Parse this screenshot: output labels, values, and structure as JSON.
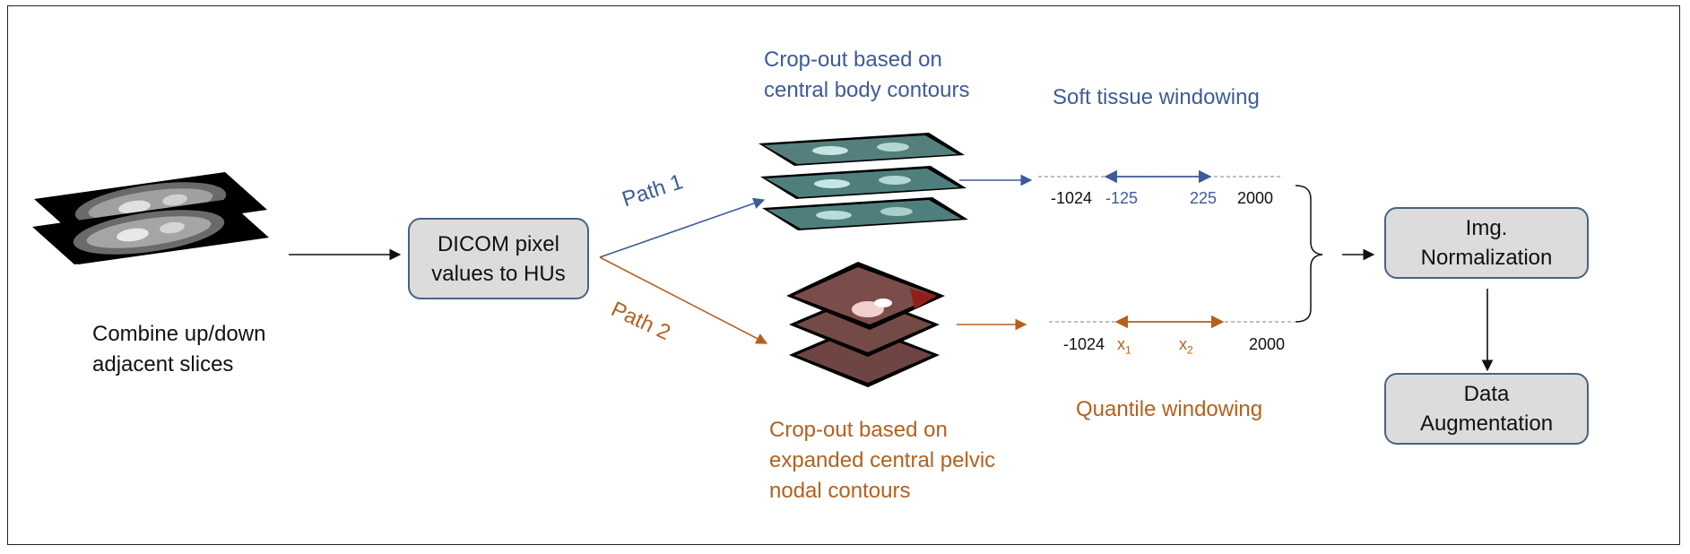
{
  "colors": {
    "path1": "#3d5b99",
    "path2": "#b5601e",
    "box_border": "#4a6282",
    "box_fill": "#dcdcdc"
  },
  "combine": {
    "label": "Combine up/down\nadjacent slices"
  },
  "dicom": {
    "label": "DICOM pixel\nvalues to HUs"
  },
  "path1": {
    "label": "Path 1",
    "crop_label": "Crop-out based on\ncentral body contours"
  },
  "path2": {
    "label": "Path 2",
    "crop_label": "Crop-out based on\nexpanded central pelvic\nnodal contours"
  },
  "soft_tissue": {
    "title": "Soft tissue windowing",
    "ticks": {
      "min": "-1024",
      "low": "-125",
      "high": "225",
      "max": "2000"
    }
  },
  "quantile": {
    "title": "Quantile windowing",
    "ticks": {
      "min": "-1024",
      "low": "x",
      "low_sub": "1",
      "high": "x",
      "high_sub": "2",
      "max": "2000"
    }
  },
  "normalization": {
    "label": "Img.\nNormalization"
  },
  "augmentation": {
    "label": "Data\nAugmentation"
  },
  "icons": [
    "ct-slice-stack-icon",
    "ct-crop-stack-icon",
    "pelvic-crop-stack-icon"
  ]
}
